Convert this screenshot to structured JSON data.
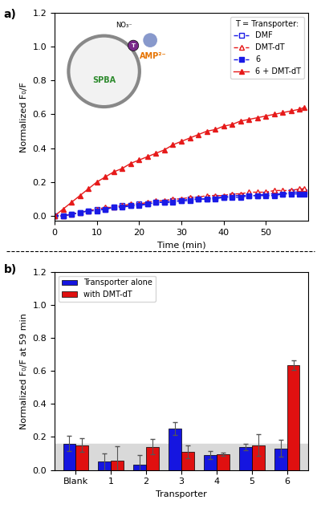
{
  "chart_data": [
    {
      "type": "line",
      "title": "a)",
      "x_label": "Time (min)",
      "y_label": "Normalized F₀/F",
      "legend_title": "T = Transporter:",
      "legend": "upper right",
      "annotations": [
        "SPBA",
        "NO₃⁻",
        "AMP²⁻",
        "T"
      ],
      "x": [
        0,
        2,
        4,
        6,
        8,
        10,
        12,
        14,
        16,
        18,
        20,
        22,
        24,
        26,
        28,
        30,
        32,
        34,
        36,
        38,
        40,
        42,
        44,
        46,
        48,
        50,
        52,
        54,
        56,
        58,
        59
      ],
      "xlim": [
        0,
        60
      ],
      "xticks": [
        0,
        10,
        20,
        30,
        40,
        50
      ],
      "ylim": [
        -0.03,
        1.2
      ],
      "yticks": [
        {
          "value": 0,
          "label": "0.0"
        },
        {
          "value": 0.2,
          "label": "0.2"
        },
        {
          "value": 0.4,
          "label": "0.4"
        },
        {
          "value": 0.6,
          "label": "0.6"
        },
        {
          "value": 0.8,
          "label": "0.8"
        },
        {
          "value": 1.0,
          "label": "1.0"
        },
        {
          "value": 1.2,
          "label": "1.2"
        }
      ],
      "series": [
        {
          "name": "DMF",
          "color": "#1a1ae6",
          "marker": "square_open",
          "line_style": "dashed",
          "values": [
            0,
            0,
            0.01,
            0.02,
            0.03,
            0.04,
            0.04,
            0.05,
            0.06,
            0.06,
            0.07,
            0.07,
            0.08,
            0.08,
            0.09,
            0.09,
            0.1,
            0.1,
            0.1,
            0.11,
            0.11,
            0.12,
            0.12,
            0.12,
            0.12,
            0.13,
            0.13,
            0.13,
            0.14,
            0.14,
            0.14
          ]
        },
        {
          "name": "DMT-dT",
          "color": "#e61a1a",
          "marker": "triangle_open",
          "line_style": "dashed",
          "values": [
            0,
            0,
            0.01,
            0.02,
            0.03,
            0.04,
            0.05,
            0.05,
            0.06,
            0.07,
            0.07,
            0.08,
            0.09,
            0.09,
            0.1,
            0.1,
            0.11,
            0.11,
            0.12,
            0.12,
            0.12,
            0.13,
            0.13,
            0.14,
            0.14,
            0.14,
            0.15,
            0.15,
            0.15,
            0.16,
            0.16
          ]
        },
        {
          "name": "6",
          "color": "#1a1ae6",
          "marker": "square",
          "line_style": "dashed",
          "values": [
            0,
            0,
            0.01,
            0.02,
            0.03,
            0.03,
            0.04,
            0.05,
            0.05,
            0.06,
            0.06,
            0.07,
            0.08,
            0.08,
            0.08,
            0.09,
            0.09,
            0.1,
            0.1,
            0.1,
            0.11,
            0.11,
            0.11,
            0.12,
            0.12,
            0.12,
            0.12,
            0.13,
            0.13,
            0.13,
            0.13
          ]
        },
        {
          "name": "6 + DMT-dT",
          "color": "#e61a1a",
          "marker": "triangle",
          "line_style": "solid",
          "values": [
            0,
            0.04,
            0.08,
            0.12,
            0.16,
            0.2,
            0.23,
            0.26,
            0.28,
            0.31,
            0.33,
            0.35,
            0.37,
            0.39,
            0.42,
            0.44,
            0.46,
            0.48,
            0.5,
            0.51,
            0.53,
            0.54,
            0.56,
            0.57,
            0.58,
            0.59,
            0.6,
            0.61,
            0.62,
            0.63,
            0.64
          ]
        }
      ]
    },
    {
      "type": "bar",
      "title": "b)",
      "x_label": "Transporter",
      "y_label": "Normalized F₀/F at 59 min",
      "legend": "upper left",
      "categories": [
        "Blank",
        "1",
        "2",
        "3",
        "4",
        "5",
        "6"
      ],
      "ylim": [
        0,
        1.2
      ],
      "yticks": [
        {
          "value": 0,
          "label": "0.0"
        },
        {
          "value": 0.2,
          "label": "0.2"
        },
        {
          "value": 0.4,
          "label": "0.4"
        },
        {
          "value": 0.6,
          "label": "0.6"
        },
        {
          "value": 0.8,
          "label": "0.8"
        },
        {
          "value": 1.0,
          "label": "1.0"
        },
        {
          "value": 1.2,
          "label": "1.2"
        }
      ],
      "series": [
        {
          "name": "Transporter alone",
          "color": "#1515e0",
          "values": [
            0.16,
            0.05,
            0.03,
            0.25,
            0.09,
            0.14,
            0.13
          ],
          "errors": [
            0.045,
            0.05,
            0.06,
            0.04,
            0.025,
            0.02,
            0.05
          ]
        },
        {
          "name": "with DMT-dT",
          "color": "#e01010",
          "values": [
            0.15,
            0.055,
            0.14,
            0.11,
            0.095,
            0.15,
            0.635
          ],
          "errors": [
            0.04,
            0.09,
            0.045,
            0.04,
            0.01,
            0.065,
            0.03
          ]
        }
      ]
    }
  ]
}
